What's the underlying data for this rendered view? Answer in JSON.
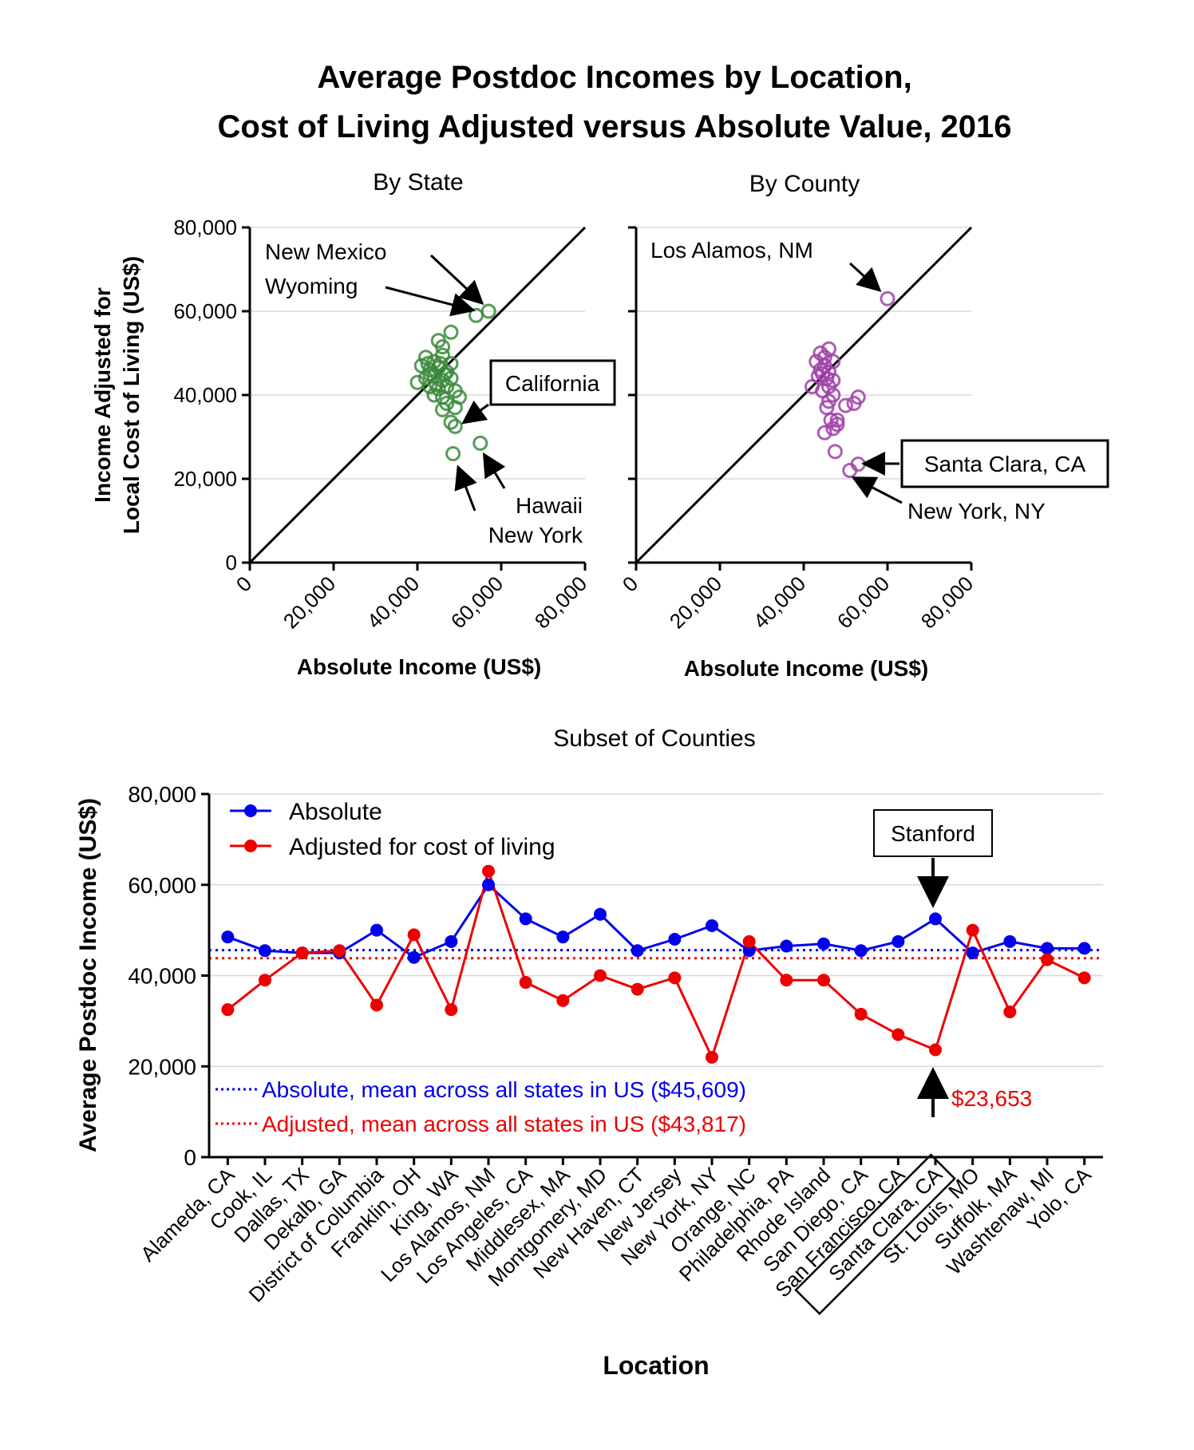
{
  "title_line1": "Average Postdoc Incomes by Location,",
  "title_line2": "Cost of Living Adjusted versus Absolute Value, 2016",
  "colors": {
    "state": "#3a8a3a",
    "state_dark": "#0d5c0d",
    "county": "#a040a8",
    "county_dark": "#6a1a72",
    "absolute": "#0000ee",
    "adjusted": "#ee0000"
  },
  "chart_data": [
    {
      "type": "scatter",
      "title": "By State",
      "xlabel": "Absolute Income (US$)",
      "ylabel": "Income Adjusted for Local Cost of Living (US$)",
      "ylabel_lines": [
        "Income Adjusted for",
        "Local Cost of Living (US$)"
      ],
      "xlim": [
        0,
        80000
      ],
      "ylim": [
        0,
        80000
      ],
      "xticks": [
        "0",
        "20,000",
        "40,000",
        "60,000",
        "80,000"
      ],
      "yticks": [
        "0",
        "20,000",
        "40,000",
        "60,000",
        "80,000"
      ],
      "grid": true,
      "reference_line": "y = x",
      "points": [
        {
          "x": 57000,
          "y": 60000
        },
        {
          "x": 54000,
          "y": 59000
        },
        {
          "x": 48000,
          "y": 55000
        },
        {
          "x": 45000,
          "y": 53000
        },
        {
          "x": 46000,
          "y": 51500
        },
        {
          "x": 42000,
          "y": 49000
        },
        {
          "x": 44000,
          "y": 48000
        },
        {
          "x": 46000,
          "y": 49500
        },
        {
          "x": 48000,
          "y": 47500
        },
        {
          "x": 41000,
          "y": 47000
        },
        {
          "x": 43000,
          "y": 46000
        },
        {
          "x": 45000,
          "y": 46500
        },
        {
          "x": 47000,
          "y": 45500
        },
        {
          "x": 40000,
          "y": 43000
        },
        {
          "x": 42000,
          "y": 44000
        },
        {
          "x": 44000,
          "y": 44500
        },
        {
          "x": 46000,
          "y": 43500
        },
        {
          "x": 48000,
          "y": 44000
        },
        {
          "x": 43000,
          "y": 42000
        },
        {
          "x": 45000,
          "y": 41500
        },
        {
          "x": 47000,
          "y": 42000
        },
        {
          "x": 49000,
          "y": 41000
        },
        {
          "x": 44000,
          "y": 40000
        },
        {
          "x": 46000,
          "y": 39500
        },
        {
          "x": 50000,
          "y": 39500
        },
        {
          "x": 47000,
          "y": 38000
        },
        {
          "x": 49000,
          "y": 37000
        },
        {
          "x": 46000,
          "y": 36500
        },
        {
          "x": 48000,
          "y": 33500
        },
        {
          "x": 49000,
          "y": 32500
        },
        {
          "x": 55000,
          "y": 28500
        },
        {
          "x": 48500,
          "y": 26000
        },
        {
          "x": 43000,
          "y": 45000
        },
        {
          "x": 45500,
          "y": 47500
        },
        {
          "x": 44500,
          "y": 42500
        },
        {
          "x": 42500,
          "y": 47500
        },
        {
          "x": 46500,
          "y": 45000
        }
      ],
      "annotations": [
        {
          "text": "New Mexico",
          "boxed": false
        },
        {
          "text": "Wyoming",
          "boxed": false
        },
        {
          "text": "California",
          "boxed": true
        },
        {
          "text": "Hawaii",
          "boxed": false
        },
        {
          "text": "New York",
          "boxed": false
        }
      ]
    },
    {
      "type": "scatter",
      "title": "By County",
      "xlabel": "Absolute Income (US$)",
      "xlim": [
        0,
        80000
      ],
      "ylim": [
        0,
        80000
      ],
      "xticks": [
        "0",
        "20,000",
        "40,000",
        "60,000",
        "80,000"
      ],
      "grid": true,
      "reference_line": "y = x",
      "points": [
        {
          "x": 60000,
          "y": 63000
        },
        {
          "x": 44000,
          "y": 50000
        },
        {
          "x": 46000,
          "y": 51000
        },
        {
          "x": 45000,
          "y": 49000
        },
        {
          "x": 43000,
          "y": 48000
        },
        {
          "x": 45000,
          "y": 47000
        },
        {
          "x": 47000,
          "y": 48000
        },
        {
          "x": 44000,
          "y": 46000
        },
        {
          "x": 46000,
          "y": 45500
        },
        {
          "x": 43500,
          "y": 44500
        },
        {
          "x": 45500,
          "y": 44000
        },
        {
          "x": 47000,
          "y": 43500
        },
        {
          "x": 42000,
          "y": 42000
        },
        {
          "x": 46000,
          "y": 42000
        },
        {
          "x": 44500,
          "y": 41000
        },
        {
          "x": 47000,
          "y": 40000
        },
        {
          "x": 46000,
          "y": 38500
        },
        {
          "x": 53000,
          "y": 39500
        },
        {
          "x": 52000,
          "y": 38000
        },
        {
          "x": 50000,
          "y": 37500
        },
        {
          "x": 45500,
          "y": 37000
        },
        {
          "x": 48000,
          "y": 34000
        },
        {
          "x": 46500,
          "y": 34000
        },
        {
          "x": 48000,
          "y": 33000
        },
        {
          "x": 47000,
          "y": 32000
        },
        {
          "x": 45000,
          "y": 31000
        },
        {
          "x": 47500,
          "y": 26500
        },
        {
          "x": 53000,
          "y": 23500
        },
        {
          "x": 51000,
          "y": 22000
        },
        {
          "x": 44500,
          "y": 45000
        }
      ],
      "annotations": [
        {
          "text": "Los Alamos, NM",
          "boxed": false
        },
        {
          "text": "Santa Clara, CA",
          "boxed": true
        },
        {
          "text": "New York, NY",
          "boxed": false
        }
      ]
    },
    {
      "type": "line",
      "title": "Subset of Counties",
      "xlabel": "Location",
      "ylabel": "Average Postdoc Income (US$)",
      "ylim": [
        0,
        80000
      ],
      "yticks": [
        "0",
        "20,000",
        "40,000",
        "60,000",
        "80,000"
      ],
      "grid": true,
      "legend_position": "top-left",
      "categories": [
        "Alameda, CA",
        "Cook, IL",
        "Dallas, TX",
        "Dekalb, GA",
        "District of Columbia",
        "Franklin, OH",
        "King, WA",
        "Los Alamos, NM",
        "Los Angeles, CA",
        "Middlesex, MA",
        "Montgomery, MD",
        "New Haven, CT",
        "New Jersey",
        "New York, NY",
        "Orange, NC",
        "Philadelphia, PA",
        "Rhode Island",
        "San Diego, CA",
        "San Francisco, CA",
        "Santa Clara, CA",
        "St. Louis, MO",
        "Suffolk, MA",
        "Washtenaw, MI",
        "Yolo, CA"
      ],
      "highlight_category": "Santa Clara, CA",
      "series": [
        {
          "name": "Absolute",
          "values": [
            48500,
            45500,
            45000,
            45000,
            50000,
            44000,
            47500,
            60000,
            52500,
            48500,
            53500,
            45500,
            48000,
            51000,
            45500,
            46500,
            47000,
            45500,
            47500,
            52500,
            45000,
            47500,
            46000,
            46000
          ]
        },
        {
          "name": "Adjusted for cost of living",
          "values": [
            32500,
            39000,
            45000,
            45500,
            33500,
            49000,
            32500,
            63000,
            38500,
            34500,
            40000,
            37000,
            39500,
            22000,
            47500,
            39000,
            39000,
            31500,
            27000,
            23653,
            50000,
            32000,
            43500,
            39500
          ]
        }
      ],
      "reference_lines": [
        {
          "label": "Absolute, mean across all states in US ($45,609)",
          "value": 45609
        },
        {
          "label": "Adjusted, mean across all states in US ($43,817)",
          "value": 43817
        }
      ],
      "annotations": [
        {
          "text": "Stanford",
          "boxed": true
        },
        {
          "text": "$23,653",
          "boxed": false
        }
      ]
    }
  ]
}
